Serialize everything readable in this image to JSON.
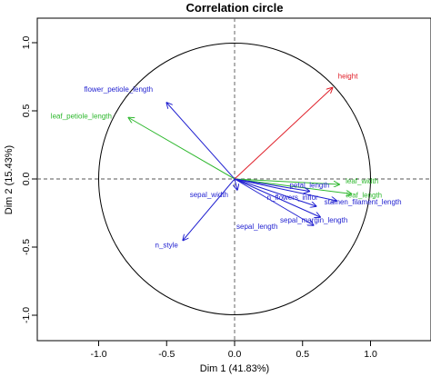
{
  "colors": {
    "active": "#1f1fd0",
    "supplementary": "#2eb82e",
    "highlight": "#e0202a",
    "frame": "#000000",
    "circle": "#000000",
    "guide": "#555555"
  },
  "chart_data": {
    "type": "scatter",
    "title": "Correlation circle",
    "xlabel": "Dim 1 (41.83%)",
    "ylabel": "Dim 2 (15.43%)",
    "xlim": [
      -1.45,
      1.45
    ],
    "ylim": [
      -1.1,
      1.1
    ],
    "xticks": [
      "-1.0",
      "-0.5",
      "0.0",
      "0.5",
      "1.0"
    ],
    "yticks": [
      "-1.0",
      "-0.5",
      "0.0",
      "0.5",
      "1.0"
    ],
    "grid": false,
    "unit_circle": true,
    "vectors": [
      {
        "name": "height",
        "x": 0.72,
        "y": 0.67,
        "color": "#e0202a",
        "label_anchor": "start"
      },
      {
        "name": "flower_petiole_length",
        "x": -0.5,
        "y": 0.56,
        "color": "#1f1fd0",
        "label_anchor": "middle"
      },
      {
        "name": "leaf_petiole_length",
        "x": -0.78,
        "y": 0.45,
        "color": "#2eb82e",
        "label_anchor": "middle"
      },
      {
        "name": "leaf_width",
        "x": 0.77,
        "y": -0.04,
        "color": "#2eb82e",
        "label_anchor": "middle"
      },
      {
        "name": "leaf_length",
        "x": 0.86,
        "y": -0.11,
        "color": "#2eb82e",
        "label_anchor": "middle"
      },
      {
        "name": "petal_length",
        "x": 0.55,
        "y": -0.09,
        "color": "#1f1fd0",
        "label_anchor": "middle"
      },
      {
        "name": "stamen_filament_length",
        "x": 0.75,
        "y": -0.16,
        "color": "#1f1fd0",
        "label_anchor": "middle"
      },
      {
        "name": "n_flowers_inflor",
        "x": 0.6,
        "y": -0.2,
        "color": "#1f1fd0",
        "label_anchor": "middle"
      },
      {
        "name": "sepal_margin_length",
        "x": 0.63,
        "y": -0.28,
        "color": "#1f1fd0",
        "label_anchor": "middle"
      },
      {
        "name": "sepal_length",
        "x": 0.58,
        "y": -0.34,
        "color": "#1f1fd0",
        "label_anchor": "middle"
      },
      {
        "name": "sepal_width",
        "x": 0.02,
        "y": -0.08,
        "color": "#1f1fd0",
        "label_anchor": "end"
      },
      {
        "name": "n_style",
        "x": -0.38,
        "y": -0.45,
        "color": "#1f1fd0",
        "label_anchor": "middle"
      }
    ]
  }
}
